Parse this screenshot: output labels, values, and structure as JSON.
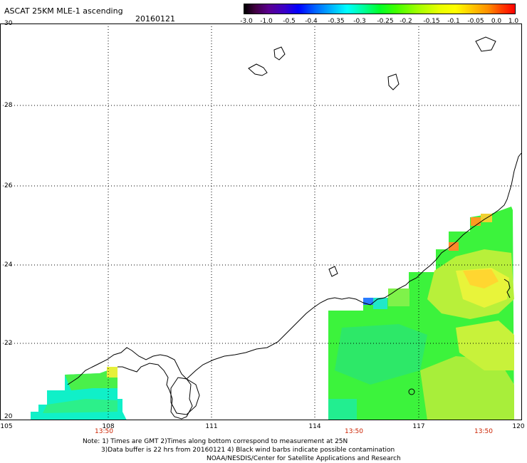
{
  "header": {
    "title": "ASCAT 25KM MLE-1 ascending",
    "date": "20160121"
  },
  "colorbar": {
    "labels": [
      "-3.0",
      "-1.0",
      "-0.5",
      "-0.4",
      "-0.35",
      "-0.3",
      "-0.25",
      "-0.2",
      "-0.15",
      "-0.1",
      "-0.05",
      "0.0",
      "1.0"
    ]
  },
  "axes": {
    "lat_labels": [
      "30",
      "28",
      "26",
      "24",
      "22",
      "20"
    ],
    "lon_labels": [
      "105",
      "108",
      "111",
      "114",
      "117",
      "120"
    ],
    "time_labels": [
      "13:50",
      "13:50",
      "13:50"
    ]
  },
  "notes": {
    "line1": "Note: 1) Times are GMT 2)Times along bottom correspond to measurement at 25N",
    "line2": "3)Data buffer is 22 hrs from 20160121 4) Black wind barbs indicate possible contamination",
    "line3": "NOAA/NESDIS/Center for Satellite Applications and Research"
  },
  "colors": {
    "grid": "#000000",
    "time_label": "#cc2200"
  }
}
